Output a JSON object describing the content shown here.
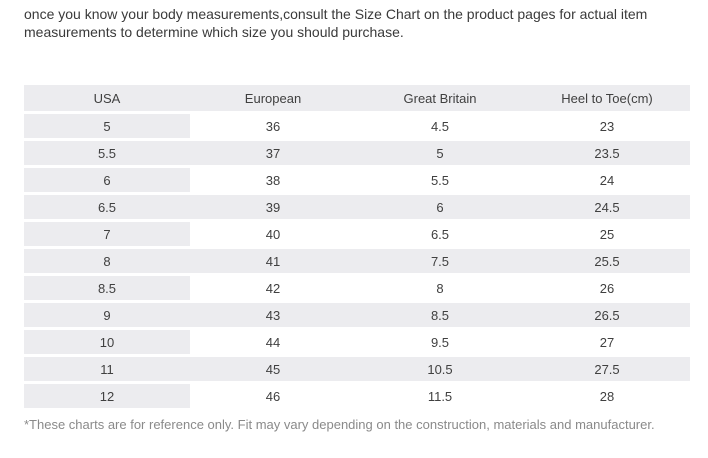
{
  "intro_text": "once you know your body measurements,consult the Size Chart on the product pages for actual item measurements to determine which size you should purchase.",
  "table": {
    "headers": [
      "USA",
      "European",
      "Great Britain",
      "Heel to Toe(cm)"
    ],
    "rows": [
      [
        "5",
        "36",
        "4.5",
        "23"
      ],
      [
        "5.5",
        "37",
        "5",
        "23.5"
      ],
      [
        "6",
        "38",
        "5.5",
        "24"
      ],
      [
        "6.5",
        "39",
        "6",
        "24.5"
      ],
      [
        "7",
        "40",
        "6.5",
        "25"
      ],
      [
        "8",
        "41",
        "7.5",
        "25.5"
      ],
      [
        "8.5",
        "42",
        "8",
        "26"
      ],
      [
        "9",
        "43",
        "8.5",
        "26.5"
      ],
      [
        "10",
        "44",
        "9.5",
        "27"
      ],
      [
        "11",
        "45",
        "10.5",
        "27.5"
      ],
      [
        "12",
        "46",
        "11.5",
        "28"
      ]
    ]
  },
  "footnote": "*These charts are for reference only. Fit may vary depending on the construction, materials and manufacturer.",
  "colors": {
    "header_bg": "#ececef",
    "stripe_bg": "#ececef",
    "text": "#404040",
    "footnote_text": "#8a8a8a"
  }
}
